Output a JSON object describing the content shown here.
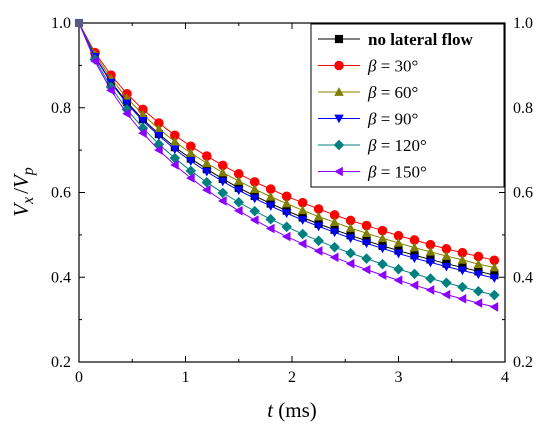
{
  "chart_data": {
    "type": "line",
    "xlabel_var": "t",
    "xlabel_unit": " (ms)",
    "ylabel_num": "V",
    "ylabel_num_sub": "x",
    "ylabel_sep": "/",
    "ylabel_den": "V",
    "ylabel_den_sub": "p",
    "xlim": [
      0,
      4
    ],
    "ylim": [
      0.2,
      1.0
    ],
    "xticks": [
      "0",
      "1",
      "2",
      "3",
      "4"
    ],
    "yticks": [
      "0.2",
      "0.4",
      "0.6",
      "0.8",
      "1.0"
    ],
    "grid": false,
    "legend_position": "top-right",
    "x": [
      0,
      0.15,
      0.3,
      0.45,
      0.6,
      0.75,
      0.9,
      1.05,
      1.2,
      1.35,
      1.5,
      1.65,
      1.8,
      1.95,
      2.1,
      2.25,
      2.4,
      2.55,
      2.7,
      2.85,
      3.0,
      3.15,
      3.3,
      3.45,
      3.6,
      3.75,
      3.9
    ],
    "series": [
      {
        "name": "no lateral flow",
        "color": "#000000",
        "marker": "square",
        "values": [
          1.0,
          0.921,
          0.861,
          0.813,
          0.773,
          0.738,
          0.707,
          0.68,
          0.655,
          0.632,
          0.611,
          0.592,
          0.574,
          0.557,
          0.541,
          0.526,
          0.512,
          0.499,
          0.486,
          0.474,
          0.463,
          0.452,
          0.442,
          0.432,
          0.423,
          0.414,
          0.405
        ]
      },
      {
        "name": "β = 30°",
        "color": "#ff0000",
        "marker": "circle",
        "values": [
          1.0,
          0.93,
          0.877,
          0.833,
          0.796,
          0.764,
          0.735,
          0.709,
          0.686,
          0.664,
          0.644,
          0.625,
          0.608,
          0.591,
          0.576,
          0.561,
          0.547,
          0.534,
          0.522,
          0.51,
          0.498,
          0.488,
          0.477,
          0.467,
          0.458,
          0.449,
          0.44
        ]
      },
      {
        "name": "β = 60°",
        "color": "#808000",
        "marker": "triangle-up",
        "values": [
          1.0,
          0.926,
          0.869,
          0.823,
          0.784,
          0.75,
          0.72,
          0.693,
          0.669,
          0.647,
          0.627,
          0.608,
          0.59,
          0.574,
          0.558,
          0.543,
          0.53,
          0.516,
          0.504,
          0.492,
          0.481,
          0.47,
          0.46,
          0.45,
          0.441,
          0.431,
          0.423
        ]
      },
      {
        "name": "β = 90°",
        "color": "#0000ff",
        "marker": "triangle-down",
        "values": [
          1.0,
          0.92,
          0.859,
          0.81,
          0.769,
          0.734,
          0.702,
          0.674,
          0.649,
          0.626,
          0.605,
          0.586,
          0.568,
          0.551,
          0.535,
          0.52,
          0.506,
          0.492,
          0.48,
          0.468,
          0.456,
          0.445,
          0.435,
          0.425,
          0.416,
          0.407,
          0.398
        ]
      },
      {
        "name": "β = 120°",
        "color": "#008080",
        "marker": "diamond",
        "values": [
          1.0,
          0.914,
          0.849,
          0.796,
          0.752,
          0.714,
          0.681,
          0.651,
          0.624,
          0.599,
          0.577,
          0.556,
          0.537,
          0.519,
          0.502,
          0.486,
          0.471,
          0.457,
          0.444,
          0.431,
          0.419,
          0.408,
          0.397,
          0.387,
          0.377,
          0.367,
          0.358
        ]
      },
      {
        "name": "β = 150°",
        "color": "#8b00ff",
        "marker": "triangle-left",
        "values": [
          1.0,
          0.91,
          0.841,
          0.786,
          0.74,
          0.7,
          0.665,
          0.634,
          0.606,
          0.58,
          0.557,
          0.535,
          0.515,
          0.496,
          0.479,
          0.462,
          0.447,
          0.432,
          0.418,
          0.405,
          0.393,
          0.381,
          0.37,
          0.359,
          0.349,
          0.339,
          0.33
        ]
      }
    ]
  }
}
